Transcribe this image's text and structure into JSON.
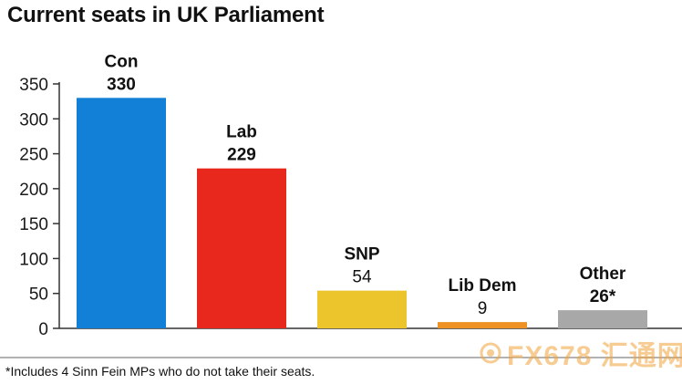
{
  "title": "Current seats in UK Parliament",
  "footnote": "*Includes 4 Sinn Fein MPs who do not take their seats.",
  "watermark": "FX678 汇通网",
  "colors": {
    "con": "#1180d6",
    "lab": "#e8281c",
    "snp": "#ebc52b",
    "libdem": "#ef9226",
    "other": "#a8a8a8",
    "axis": "#333333"
  },
  "chart_data": {
    "type": "bar",
    "title": "Current seats in UK Parliament",
    "categories": [
      "Con",
      "Lab",
      "SNP",
      "Lib Dem",
      "Other"
    ],
    "values": [
      330,
      229,
      54,
      9,
      26
    ],
    "value_labels": [
      "330",
      "229",
      "54",
      "9",
      "26*"
    ],
    "bar_colors": [
      "#1180d6",
      "#e8281c",
      "#ebc52b",
      "#ef9226",
      "#a8a8a8"
    ],
    "xlabel": "",
    "ylabel": "",
    "ylim": [
      0,
      350
    ],
    "yticks": [
      0,
      50,
      100,
      150,
      200,
      250,
      300,
      350
    ],
    "grid": false,
    "legend": "none"
  }
}
